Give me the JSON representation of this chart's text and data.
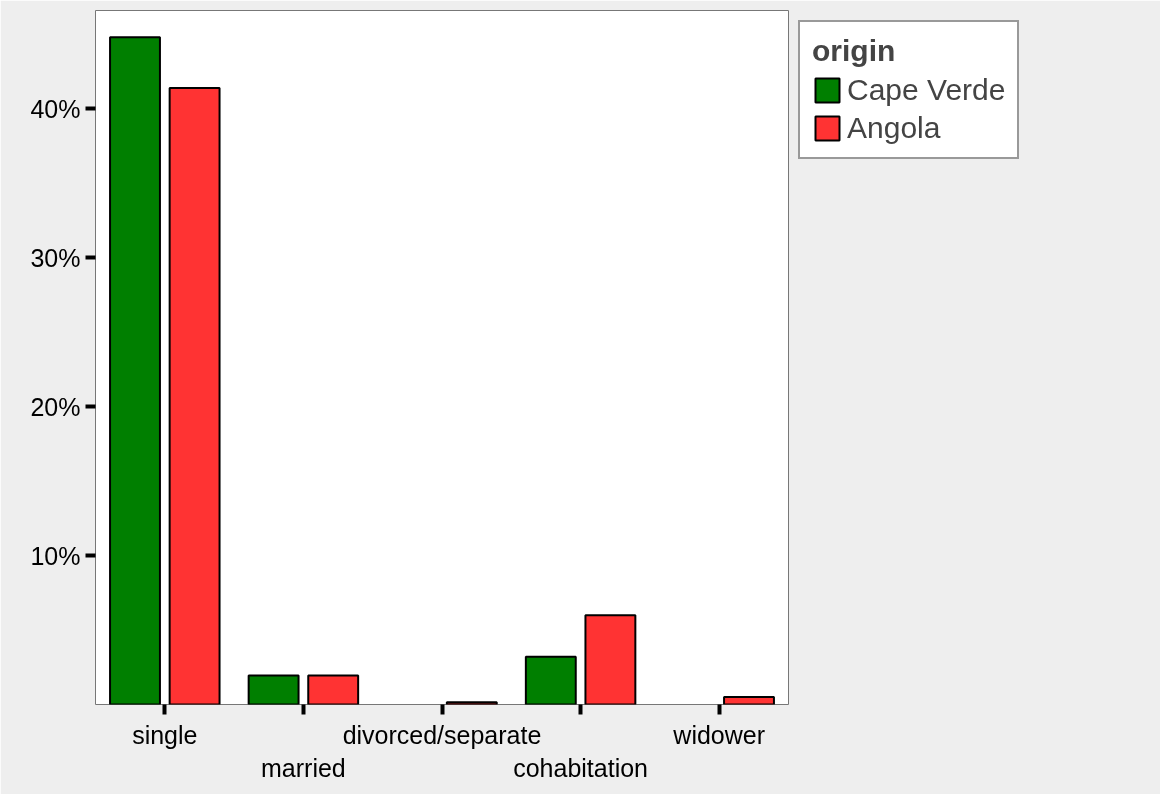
{
  "chart_data": {
    "type": "bar",
    "categories": [
      "single",
      "married",
      "divorced/separate",
      "cohabitation",
      "widower"
    ],
    "series": [
      {
        "name": "Cape Verde",
        "color": "#007f00",
        "values": [
          44.8,
          1.95,
          null,
          3.2,
          null
        ]
      },
      {
        "name": "Angola",
        "color": "#ff3333",
        "values": [
          41.4,
          1.95,
          0.15,
          6.0,
          0.5
        ]
      }
    ],
    "ylim": [
      0,
      46.6
    ],
    "yticks": [
      {
        "value": 10,
        "label": "10%"
      },
      {
        "value": 20,
        "label": "20%"
      },
      {
        "value": 30,
        "label": "30%"
      },
      {
        "value": 40,
        "label": "40%"
      }
    ],
    "legend_title": "origin",
    "legend": "top right",
    "grid": false
  }
}
